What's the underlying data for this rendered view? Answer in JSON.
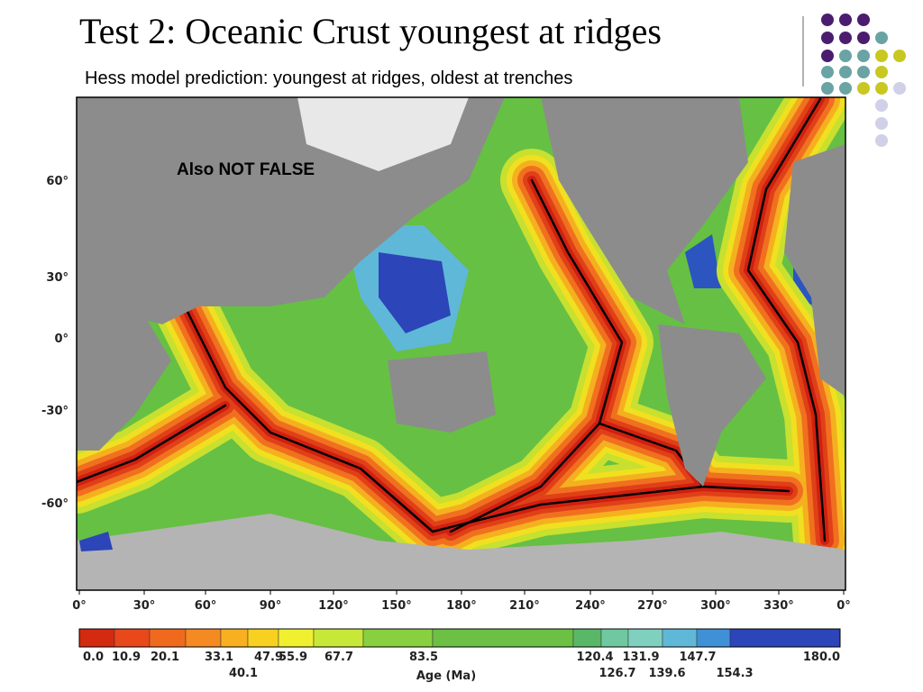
{
  "title": "Test 2: Oceanic Crust youngest at ridges",
  "subtitle": "Hess model prediction: youngest at ridges, oldest at trenches",
  "map": {
    "annotation": "Also NOT FALSE",
    "lat_labels": [
      "60°",
      "30°",
      "0°",
      "-30°",
      "-60°"
    ],
    "lon_labels": [
      "0°",
      "30°",
      "60°",
      "90°",
      "120°",
      "150°",
      "180°",
      "210°",
      "240°",
      "270°",
      "300°",
      "330°",
      "0°"
    ]
  },
  "colorbar": {
    "title": "Age (Ma)",
    "labels_top": [
      "0.0",
      "10.9",
      "20.1",
      "33.1",
      "47.9",
      "55.9",
      "67.7",
      "83.5",
      "120.4",
      "131.9",
      "147.7",
      "180.0"
    ],
    "labels_bottom": [
      "40.1",
      "126.7",
      "139.6",
      "154.3"
    ]
  }
}
